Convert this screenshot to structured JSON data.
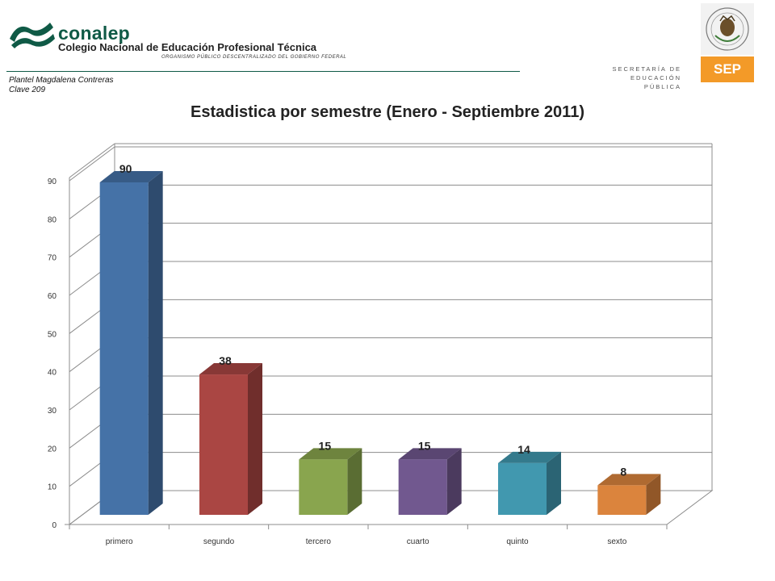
{
  "header": {
    "brand": "conalep",
    "college": "Colegio Nacional de Educación Profesional Técnica",
    "org": "ORGANISMO PÚBLICO DESCENTRALIZADO DEL GOBIERNO FEDERAL",
    "plantel": "Plantel  Magdalena Contreras",
    "clave": "Clave 209",
    "secretaria_line1": "SECRETARÍA DE",
    "secretaria_line2": "EDUCACIÓN PÚBLICA",
    "sep": "SEP",
    "seal_text": "ESTADOS UNIDOS MEXICANOS"
  },
  "chart_data": {
    "type": "bar",
    "title": "Estadistica por semestre (Enero - Septiembre 2011)",
    "categories": [
      "primero",
      "segundo",
      "tercero",
      "cuarto",
      "quinto",
      "sexto"
    ],
    "values": [
      90,
      38,
      15,
      15,
      14,
      8
    ],
    "colors": [
      "#4572a7",
      "#aa4643",
      "#89a54e",
      "#71588f",
      "#4198af",
      "#db843d"
    ],
    "ylim": [
      0,
      90
    ],
    "yticks": [
      0,
      10,
      20,
      30,
      40,
      50,
      60,
      70,
      80,
      90
    ],
    "grid": true,
    "legend": "none",
    "style": "3d"
  }
}
